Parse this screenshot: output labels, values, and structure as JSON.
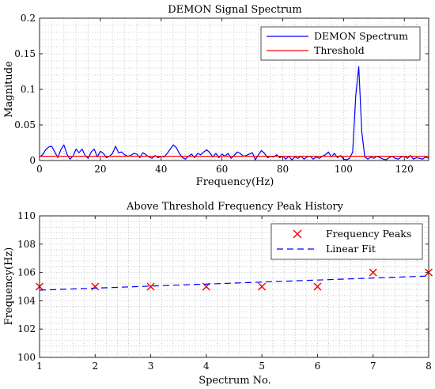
{
  "chart_data": [
    {
      "type": "line",
      "title": "DEMON Signal Spectrum",
      "xlabel": "Frequency(Hz)",
      "ylabel": "Magnitude",
      "xlim": [
        0,
        128
      ],
      "ylim": [
        0,
        0.2
      ],
      "xticks": [
        0,
        20,
        40,
        60,
        80,
        100,
        120
      ],
      "yticks": [
        0,
        0.05,
        0.1,
        0.15,
        0.2
      ],
      "xtick_labels": [
        "0",
        "20",
        "40",
        "60",
        "80",
        "100",
        "120"
      ],
      "ytick_labels": [
        "0",
        "0.05",
        "0.1",
        "0.15",
        "0.2"
      ],
      "grid": true,
      "legend_position": "top-right",
      "series": [
        {
          "name": "DEMON Spectrum",
          "color": "#0000ff",
          "x": [
            0,
            1,
            2,
            3,
            4,
            5,
            6,
            7,
            8,
            9,
            10,
            11,
            12,
            13,
            14,
            15,
            16,
            17,
            18,
            19,
            20,
            21,
            22,
            23,
            24,
            25,
            26,
            27,
            28,
            29,
            30,
            31,
            32,
            33,
            34,
            35,
            36,
            37,
            38,
            39,
            40,
            41,
            42,
            43,
            44,
            45,
            46,
            47,
            48,
            49,
            50,
            51,
            52,
            53,
            54,
            55,
            56,
            57,
            58,
            59,
            60,
            61,
            62,
            63,
            64,
            65,
            66,
            67,
            68,
            69,
            70,
            71,
            72,
            73,
            74,
            75,
            76,
            77,
            78,
            79,
            80,
            81,
            82,
            83,
            84,
            85,
            86,
            87,
            88,
            89,
            90,
            91,
            92,
            93,
            94,
            95,
            96,
            97,
            98,
            99,
            100,
            101,
            102,
            103,
            104,
            105,
            106,
            107,
            108,
            109,
            110,
            111,
            112,
            113,
            114,
            115,
            116,
            117,
            118,
            119,
            120,
            121,
            122,
            123,
            124,
            125,
            126,
            127,
            128
          ],
          "y": [
            0.005,
            0.008,
            0.015,
            0.019,
            0.02,
            0.012,
            0.004,
            0.015,
            0.022,
            0.009,
            0.002,
            0.006,
            0.016,
            0.011,
            0.016,
            0.007,
            0.003,
            0.012,
            0.016,
            0.005,
            0.013,
            0.01,
            0.004,
            0.006,
            0.01,
            0.02,
            0.011,
            0.012,
            0.008,
            0.006,
            0.007,
            0.01,
            0.009,
            0.004,
            0.011,
            0.008,
            0.005,
            0.003,
            0.007,
            0.004,
            0.006,
            0.005,
            0.01,
            0.016,
            0.022,
            0.018,
            0.01,
            0.004,
            0.002,
            0.006,
            0.009,
            0.004,
            0.01,
            0.008,
            0.012,
            0.015,
            0.011,
            0.005,
            0.01,
            0.004,
            0.009,
            0.006,
            0.01,
            0.003,
            0.007,
            0.012,
            0.01,
            0.006,
            0.007,
            0.009,
            0.011,
            0.001,
            0.008,
            0.014,
            0.01,
            0.004,
            0.006,
            0.005,
            0.008,
            0.004,
            0.006,
            0.002,
            0.006,
            0.001,
            0.005,
            0.003,
            0.006,
            0.002,
            0.005,
            0.006,
            0.002,
            0.005,
            0.003,
            0.006,
            0.008,
            0.012,
            0.005,
            0.01,
            0.004,
            0.007,
            0.002,
            0.001,
            0.003,
            0.012,
            0.09,
            0.132,
            0.04,
            0.005,
            0.002,
            0.005,
            0.003,
            0.006,
            0.004,
            0.002,
            0.001,
            0.004,
            0.006,
            0.003,
            0.002,
            0.005,
            0.006,
            0.003,
            0.007,
            0.002,
            0.004,
            0.003,
            0.002,
            0.005,
            0.003
          ]
        },
        {
          "name": "Threshold",
          "color": "#ff0000",
          "x": [
            0,
            128
          ],
          "y": [
            0.006,
            0.006
          ]
        }
      ]
    },
    {
      "type": "scatter",
      "title": "Above Threshold Frequency Peak History",
      "xlabel": "Spectrum No.",
      "ylabel": "Frequency(Hz)",
      "xlim": [
        1,
        8
      ],
      "ylim": [
        100,
        110
      ],
      "xticks": [
        1,
        2,
        3,
        4,
        5,
        6,
        7,
        8
      ],
      "yticks": [
        100,
        102,
        104,
        106,
        108,
        110
      ],
      "xtick_labels": [
        "1",
        "2",
        "3",
        "4",
        "5",
        "6",
        "7",
        "8"
      ],
      "ytick_labels": [
        "100",
        "102",
        "104",
        "106",
        "108",
        "110"
      ],
      "grid": true,
      "legend_position": "top-right",
      "series": [
        {
          "name": "Frequency Peaks",
          "color": "#ff0000",
          "marker": "x",
          "x": [
            1,
            2,
            3,
            4,
            5,
            6,
            7,
            8
          ],
          "y": [
            105,
            105,
            105,
            105,
            105,
            105,
            106,
            106
          ]
        },
        {
          "name": "Linear Fit",
          "color": "#0000ff",
          "line_style": "dashed",
          "x": [
            1,
            8
          ],
          "y": [
            104.75,
            105.75
          ]
        }
      ]
    }
  ]
}
